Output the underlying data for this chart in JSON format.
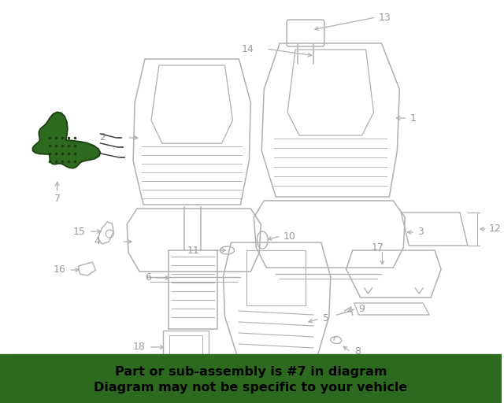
{
  "bg_color": "#ffffff",
  "banner_color": "#2d6a1f",
  "banner_text_line1": "Part or sub-assembly is #7 in diagram",
  "banner_text_line2": "Diagram may not be specific to your vehicle",
  "banner_text_color": "#000000",
  "lc": "#b0b0b0",
  "hc": "#2d6a1f",
  "hc_edge": "#1a4010",
  "lbc": "#999999",
  "label_fs": 9,
  "fig_w": 6.4,
  "fig_h": 5.12,
  "dpi": 100
}
